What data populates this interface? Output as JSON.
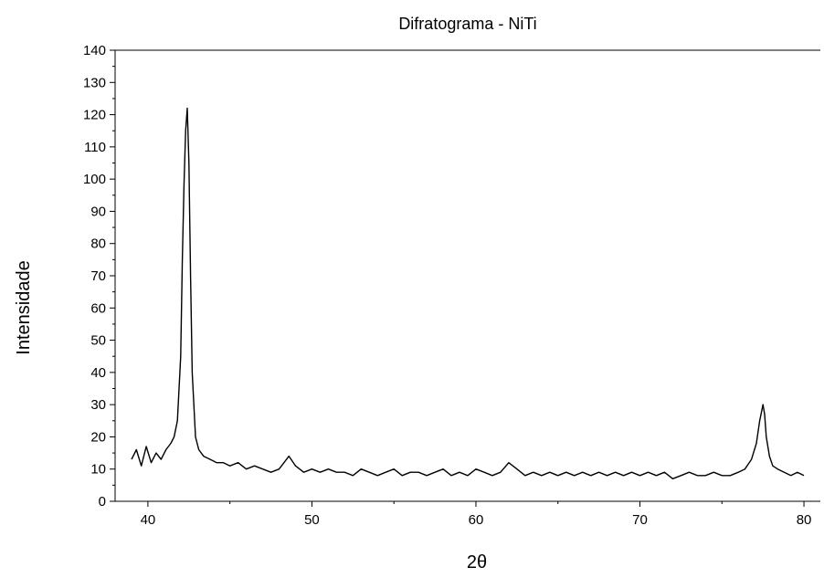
{
  "chart_data": {
    "type": "line",
    "title": "Difratograma - NiTi",
    "xlabel": "2θ",
    "ylabel": "Intensidade",
    "xlim": [
      38,
      81
    ],
    "ylim": [
      0,
      140
    ],
    "x_ticks": [
      40,
      50,
      60,
      70,
      80
    ],
    "y_ticks": [
      0,
      10,
      20,
      30,
      40,
      50,
      60,
      70,
      80,
      90,
      100,
      110,
      120,
      130,
      140
    ],
    "grid": false,
    "legend": "none",
    "line_color": "#000000",
    "series": [
      {
        "x": [
          39.0,
          39.3,
          39.6,
          39.9,
          40.2,
          40.5,
          40.8,
          41.1,
          41.4,
          41.6,
          41.8,
          42.0,
          42.1,
          42.2,
          42.3,
          42.4,
          42.5,
          42.6,
          42.7,
          42.9,
          43.1,
          43.4,
          43.8,
          44.2,
          44.6,
          45.0,
          45.5,
          46.0,
          46.5,
          47.0,
          47.5,
          48.0,
          48.6,
          49.0,
          49.5,
          50.0,
          50.5,
          51.0,
          51.5,
          52.0,
          52.5,
          53.0,
          53.5,
          54.0,
          54.5,
          55.0,
          55.5,
          56.0,
          56.5,
          57.0,
          57.5,
          58.0,
          58.5,
          59.0,
          59.5,
          60.0,
          60.5,
          61.0,
          61.5,
          62.0,
          62.5,
          63.0,
          63.5,
          64.0,
          64.5,
          65.0,
          65.5,
          66.0,
          66.5,
          67.0,
          67.5,
          68.0,
          68.5,
          69.0,
          69.5,
          70.0,
          70.5,
          71.0,
          71.5,
          72.0,
          72.5,
          73.0,
          73.5,
          74.0,
          74.5,
          75.0,
          75.5,
          76.0,
          76.4,
          76.8,
          77.1,
          77.3,
          77.5,
          77.6,
          77.7,
          77.9,
          78.1,
          78.4,
          78.8,
          79.2,
          79.6,
          80.0
        ],
        "y": [
          13,
          16,
          11,
          17,
          12,
          15,
          13,
          16,
          18,
          20,
          25,
          45,
          75,
          98,
          115,
          122,
          105,
          70,
          40,
          20,
          16,
          14,
          13,
          12,
          12,
          11,
          12,
          10,
          11,
          10,
          9,
          10,
          14,
          11,
          9,
          10,
          9,
          10,
          9,
          9,
          8,
          10,
          9,
          8,
          9,
          10,
          8,
          9,
          9,
          8,
          9,
          10,
          8,
          9,
          8,
          10,
          9,
          8,
          9,
          12,
          10,
          8,
          9,
          8,
          9,
          8,
          9,
          8,
          9,
          8,
          9,
          8,
          9,
          8,
          9,
          8,
          9,
          8,
          9,
          7,
          8,
          9,
          8,
          8,
          9,
          8,
          8,
          9,
          10,
          13,
          18,
          25,
          30,
          27,
          20,
          14,
          11,
          10,
          9,
          8,
          9,
          8
        ]
      }
    ]
  }
}
